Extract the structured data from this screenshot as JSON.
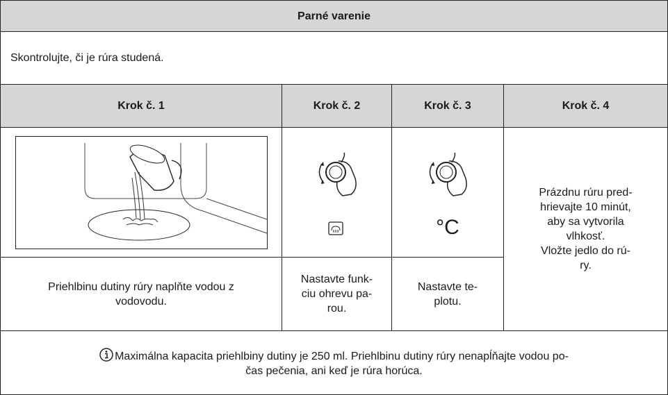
{
  "header": {
    "title": "Parné varenie"
  },
  "intro": "Skontrolujte, či je rúra studená.",
  "steps": [
    {
      "label": "Krok č. 1",
      "text": [
        "Priehlbinu dutiny rúry naplňte vodou z",
        "vodovodu."
      ]
    },
    {
      "label": "Krok č. 2",
      "text": [
        "Nastavte funk-",
        "ciu ohrevu pa-",
        "rou."
      ]
    },
    {
      "label": "Krok č. 3",
      "symbol": "°C",
      "text": [
        "Nastavte te-",
        "plotu."
      ]
    },
    {
      "label": "Krok č. 4",
      "text": [
        "Prázdnu rúru pred-",
        "hrievajte 10 minút,",
        "aby sa vytvorila",
        "vlhkosť.",
        "Vložte jedlo do rú-",
        "ry."
      ]
    }
  ],
  "note": [
    "Maximálna kapacita priehlbiny dutiny je 250 ml. Priehlbinu dutiny rúry nenapĺňajte vodou po-",
    "čas pečenia, ani keď je rúra horúca."
  ]
}
